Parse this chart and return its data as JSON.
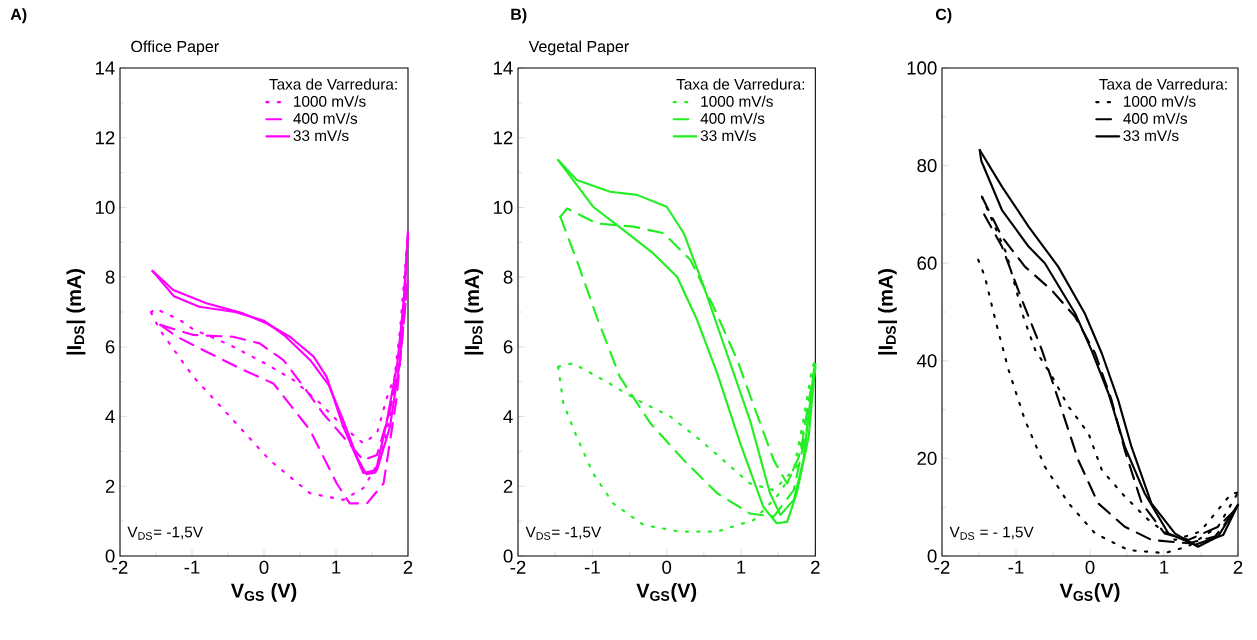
{
  "chart_data": [
    {
      "type": "line",
      "title": "Office Paper",
      "xlabel": "V$_{GS}$ (V)",
      "ylabel": "|I$_{DS}$| (mA)",
      "legend_title": "Taxa de Varredura:",
      "legend": "top right",
      "annotations": [
        "A)",
        "V$_{DS}$= -1,5V"
      ],
      "xlim": [
        -2,
        2
      ],
      "ylim": [
        0,
        14
      ],
      "xticks": [
        -2,
        {
          "value": -1.5,
          "label": null
        },
        -1,
        {
          "value": -0.5,
          "label": null
        },
        0,
        {
          "value": 0.5,
          "label": null
        },
        1,
        {
          "value": 1.5,
          "label": null
        },
        2
      ],
      "yticks": [
        0,
        {
          "value": 1,
          "label": null
        },
        2,
        {
          "value": 3,
          "label": null
        },
        4,
        {
          "value": 5,
          "label": null
        },
        6,
        {
          "value": 7,
          "label": null
        },
        8,
        {
          "value": 9,
          "label": null
        },
        10,
        {
          "value": 11,
          "label": null
        },
        12,
        {
          "value": 13,
          "label": null
        },
        14
      ],
      "series": [
        {
          "name": "1000 mV/s",
          "color": "#ff00ff",
          "line_style": "dotted",
          "x": [
            -1.57,
            -1.51,
            -1.17,
            -0.98,
            -0.47,
            -0.24,
            0.01,
            0.41,
            0.78,
            1.1,
            1.38,
            1.57,
            1.7,
            1.89,
            2
          ],
          "values": [
            6.99,
            7.1,
            6.77,
            6.5,
            6.05,
            5.8,
            5.53,
            5.05,
            4.38,
            3.71,
            3.23,
            3.52,
            4.5,
            5.6,
            9.3
          ]
        },
        {
          "color": "#ff00ff",
          "line_style": "dotted",
          "x": [
            -1.57,
            -1.45,
            -1.28,
            -0.98,
            -0.43,
            0.08,
            0.64,
            1.1,
            1.38,
            1.61,
            1.75,
            1.89,
            2
          ],
          "values": [
            6.99,
            6.5,
            6.0,
            5.14,
            3.9,
            2.75,
            1.8,
            1.61,
            1.95,
            2.75,
            4.0,
            6.5,
            9.3
          ]
        },
        {
          "name": "400 mV/s",
          "color": "#ff00ff",
          "line_style": "dashed",
          "x": [
            -1.44,
            -0.98,
            -0.43,
            -0.06,
            0.27,
            0.55,
            0.82,
            1.1,
            1.38,
            1.57,
            1.75,
            1.89,
            2
          ],
          "values": [
            6.63,
            6.34,
            6.29,
            6.1,
            5.62,
            4.86,
            4.09,
            3.42,
            2.75,
            2.9,
            4.19,
            5.6,
            8.0
          ]
        },
        {
          "color": "#ff00ff",
          "line_style": "dashed",
          "x": [
            -1.44,
            -1.21,
            -0.75,
            -0.29,
            0.13,
            0.64,
            1.01,
            1.19,
            1.43,
            1.66,
            1.84,
            2
          ],
          "values": [
            6.63,
            6.29,
            5.81,
            5.34,
            4.95,
            3.61,
            2.08,
            1.51,
            1.51,
            2.08,
            4.5,
            8.0
          ]
        },
        {
          "name": "33 mV/s",
          "color": "#ff00ff",
          "line_style": "solid",
          "x": [
            -1.55,
            -1.26,
            -0.8,
            -0.29,
            0.04,
            0.36,
            0.69,
            0.87,
            1.1,
            1.38,
            1.57,
            1.75,
            1.89,
            2
          ],
          "values": [
            8.18,
            7.63,
            7.25,
            6.96,
            6.67,
            6.29,
            5.72,
            5.14,
            3.71,
            2.38,
            2.47,
            3.71,
            5.62,
            9.3
          ]
        },
        {
          "color": "#ff00ff",
          "line_style": "solid",
          "x": [
            -1.55,
            -1.25,
            -0.9,
            -0.4,
            0,
            0.3,
            0.65,
            0.9,
            1.1,
            1.3,
            1.42,
            1.55,
            1.7,
            1.85,
            1.95,
            2
          ],
          "values": [
            8.18,
            7.45,
            7.15,
            7.0,
            6.75,
            6.3,
            5.6,
            4.9,
            3.9,
            2.8,
            2.35,
            2.4,
            3.8,
            5.5,
            7.5,
            9.3
          ]
        }
      ]
    },
    {
      "type": "line",
      "title": "Vegetal Paper",
      "xlabel": "V$_{GS}$(V)",
      "ylabel": "|I$_{DS}$| (mA)",
      "legend_title": "Taxa de Varredura:",
      "legend": "top right",
      "annotations": [
        "B)",
        "V$_{DS}$= -1,5V"
      ],
      "xlim": [
        -2,
        2
      ],
      "ylim": [
        0,
        14
      ],
      "xticks": [
        -2,
        {
          "value": -1.5,
          "label": null
        },
        -1,
        {
          "value": -0.5,
          "label": null
        },
        0,
        {
          "value": 0.5,
          "label": null
        },
        1,
        {
          "value": 1.5,
          "label": null
        },
        2
      ],
      "yticks": [
        0,
        {
          "value": 1,
          "label": null
        },
        2,
        {
          "value": 3,
          "label": null
        },
        4,
        {
          "value": 5,
          "label": null
        },
        6,
        {
          "value": 7,
          "label": null
        },
        8,
        {
          "value": 9,
          "label": null
        },
        10,
        {
          "value": 11,
          "label": null
        },
        12,
        {
          "value": 13,
          "label": null
        },
        14
      ],
      "series": [
        {
          "name": "1000 mV/s",
          "color": "#22ee22",
          "line_style": "dotted",
          "x": [
            -1.46,
            -1.26,
            -0.81,
            -0.4,
            0.05,
            0.45,
            0.81,
            1.12,
            1.44,
            1.71,
            1.84,
            1.96,
            2
          ],
          "values": [
            5.43,
            5.53,
            5.0,
            4.48,
            4.0,
            3.33,
            2.66,
            2.08,
            1.89,
            2.47,
            3.9,
            5.43,
            5.6
          ]
        },
        {
          "color": "#22ee22",
          "line_style": "dotted",
          "x": [
            -1.46,
            -1.39,
            -1.21,
            -0.99,
            -0.72,
            -0.31,
            0.18,
            0.68,
            1.17,
            1.48,
            1.75,
            1.91,
            2
          ],
          "values": [
            5.43,
            4.38,
            3.42,
            2.37,
            1.51,
            0.89,
            0.7,
            0.7,
            1.03,
            1.7,
            2.56,
            4.4,
            5.6
          ]
        },
        {
          "name": "400 mV/s",
          "color": "#22ee22",
          "line_style": "dashed",
          "x": [
            -1.43,
            -1.34,
            -0.94,
            -0.45,
            -0.04,
            0.32,
            0.63,
            0.95,
            1.21,
            1.44,
            1.62,
            1.8,
            1.93,
            2
          ],
          "values": [
            9.73,
            9.97,
            9.54,
            9.45,
            9.26,
            8.49,
            7.15,
            5.62,
            4.09,
            2.75,
            2.08,
            2.95,
            4.67,
            5.4
          ]
        },
        {
          "color": "#22ee22",
          "line_style": "dashed",
          "x": [
            -1.43,
            -1.21,
            -0.94,
            -0.63,
            -0.22,
            0.23,
            0.68,
            1.12,
            1.44,
            1.71,
            1.89,
            2
          ],
          "values": [
            9.73,
            8.49,
            6.86,
            5.14,
            3.81,
            2.75,
            1.8,
            1.22,
            1.13,
            1.89,
            3.71,
            5.4
          ]
        },
        {
          "name": "33 mV/s",
          "color": "#22ee22",
          "line_style": "solid",
          "x": [
            -1.46,
            -1.21,
            -0.76,
            -0.4,
            0,
            0.23,
            0.5,
            0.81,
            1.12,
            1.39,
            1.53,
            1.71,
            1.84,
            1.98,
            2
          ],
          "values": [
            11.36,
            10.79,
            10.45,
            10.36,
            10.02,
            9.26,
            7.73,
            5.81,
            3.9,
            1.8,
            1.18,
            1.61,
            2.75,
            5.34,
            5.5
          ]
        },
        {
          "color": "#22ee22",
          "line_style": "solid",
          "x": [
            -1.46,
            -0.99,
            -0.58,
            -0.18,
            0.14,
            0.41,
            0.68,
            0.99,
            1.3,
            1.48,
            1.62,
            1.75,
            1.91,
            2
          ],
          "values": [
            11.36,
            10.02,
            9.35,
            8.68,
            8.01,
            6.77,
            5.24,
            3.23,
            1.41,
            0.94,
            0.98,
            1.8,
            3.42,
            5.5
          ]
        }
      ]
    },
    {
      "type": "line",
      "xlabel": "V$_{GS}$(V)",
      "ylabel": "|I$_{DS}$| (mA)",
      "legend_title": "Taxa de Varredura:",
      "legend": "top right",
      "annotations": [
        "C)",
        "V$_{DS}$ = - 1,5V"
      ],
      "xlim": [
        -2,
        2
      ],
      "ylim": [
        0,
        100
      ],
      "xticks": [
        -2,
        {
          "value": -1.5,
          "label": null
        },
        -1,
        {
          "value": -0.5,
          "label": null
        },
        0,
        {
          "value": 0.5,
          "label": null
        },
        1,
        {
          "value": 1.5,
          "label": null
        },
        2
      ],
      "yticks": [
        0,
        {
          "value": 10,
          "label": null
        },
        20,
        {
          "value": 30,
          "label": null
        },
        40,
        {
          "value": 50,
          "label": null
        },
        60,
        {
          "value": 70,
          "label": null
        },
        80,
        {
          "value": 90,
          "label": null
        },
        100
      ],
      "series": [
        {
          "name": "1000 mV/s",
          "color": "#000000",
          "line_style": "dotted",
          "x": [
            -1.46,
            -1.13,
            -0.9,
            -0.74,
            -0.52,
            -0.29,
            -0.02,
            0.16,
            0.47,
            0.79,
            1.15,
            1.49,
            1.91,
            2
          ],
          "values": [
            73.6,
            62,
            49,
            42.2,
            37,
            30.6,
            25.1,
            17.6,
            12.2,
            7.4,
            3.3,
            5,
            12.8,
            13
          ]
        },
        {
          "color": "#000000",
          "line_style": "dotted",
          "x": [
            -1.51,
            -1.42,
            -1.28,
            -1.1,
            -0.88,
            -0.61,
            -0.29,
            0.07,
            0.52,
            1.01,
            1.33,
            1.73,
            2
          ],
          "values": [
            60.7,
            57.2,
            48.4,
            38.1,
            27.9,
            18.3,
            10.8,
            4.6,
            1.2,
            0.6,
            2,
            6,
            13
          ]
        },
        {
          "name": "400 mV/s",
          "color": "#000000",
          "line_style": "dashed",
          "x": [
            -1.46,
            -1.19,
            -0.88,
            -0.52,
            -0.2,
            0.07,
            0.29,
            0.47,
            0.7,
            1.01,
            1.33,
            1.73,
            2
          ],
          "values": [
            73.6,
            65.4,
            59.3,
            54.5,
            49,
            41.5,
            32,
            21.7,
            10.8,
            4.6,
            3.3,
            6,
            10
          ]
        },
        {
          "color": "#000000",
          "line_style": "dashed",
          "x": [
            -1.43,
            -1.19,
            -0.92,
            -0.65,
            -0.38,
            -0.16,
            0.11,
            0.47,
            0.83,
            1.33,
            1.69,
            2
          ],
          "values": [
            70,
            63.4,
            52.5,
            42.2,
            29.9,
            19.7,
            10.8,
            6,
            3.3,
            2.6,
            4,
            10
          ]
        },
        {
          "name": "33 mV/s",
          "color": "#000000",
          "line_style": "solid",
          "x": [
            -1.49,
            -1.19,
            -0.83,
            -0.43,
            -0.07,
            0.16,
            0.38,
            0.56,
            0.83,
            1.15,
            1.46,
            1.73,
            1.98,
            2
          ],
          "values": [
            83.2,
            75.7,
            67.5,
            59.3,
            49.7,
            41.5,
            32,
            22.4,
            10.8,
            4.6,
            1.9,
            4,
            10.1,
            10.5
          ]
        },
        {
          "color": "#000000",
          "line_style": "solid",
          "x": [
            -1.49,
            -1.47,
            -1.19,
            -0.83,
            -0.61,
            -0.2,
            0.02,
            0.25,
            0.47,
            0.74,
            1.06,
            1.42,
            1.8,
            2
          ],
          "values": [
            83.2,
            81,
            70.9,
            63.4,
            60,
            49.7,
            42.2,
            33.3,
            22.4,
            12.8,
            4.6,
            2.3,
            4.3,
            10.5
          ]
        }
      ]
    }
  ]
}
